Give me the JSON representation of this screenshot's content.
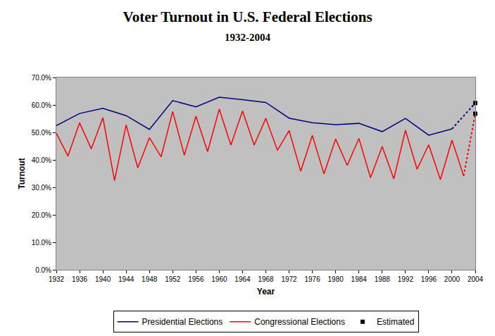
{
  "chart_data": {
    "type": "line",
    "title": "Voter Turnout in U.S. Federal Elections",
    "subtitle": "1932-2004",
    "x_label": "Year",
    "y_label": "Turnout",
    "series": [
      {
        "name": "Presidential Elections",
        "color": "#000080",
        "line_style": "solid",
        "x": [
          1932,
          1936,
          1940,
          1944,
          1948,
          1952,
          1956,
          1960,
          1964,
          1968,
          1972,
          1976,
          1980,
          1984,
          1988,
          1992,
          1996,
          2000,
          2004
        ],
        "values": [
          52.5,
          56.9,
          58.8,
          56.1,
          51.1,
          61.6,
          59.3,
          62.8,
          61.9,
          60.9,
          55.2,
          53.5,
          52.8,
          53.3,
          50.3,
          55.1,
          49.0,
          51.3,
          60.7
        ]
      },
      {
        "name": "Congressional Elections",
        "color": "#ff0000",
        "line_style": "solid",
        "x": [
          1932,
          1934,
          1936,
          1938,
          1940,
          1942,
          1944,
          1946,
          1948,
          1950,
          1952,
          1954,
          1956,
          1958,
          1960,
          1962,
          1964,
          1966,
          1968,
          1970,
          1972,
          1974,
          1976,
          1978,
          1980,
          1982,
          1984,
          1986,
          1988,
          1990,
          1992,
          1994,
          1996,
          1998,
          2000,
          2002,
          2004
        ],
        "values": [
          49.7,
          41.4,
          53.5,
          44.0,
          55.4,
          32.5,
          52.7,
          37.1,
          48.1,
          41.1,
          57.6,
          41.7,
          55.9,
          43.0,
          58.5,
          45.4,
          57.8,
          45.4,
          55.1,
          43.5,
          50.7,
          35.9,
          48.9,
          34.9,
          47.6,
          38.0,
          47.8,
          33.5,
          44.9,
          33.1,
          50.8,
          36.6,
          45.5,
          32.8,
          47.2,
          34.2,
          56.8
        ]
      },
      {
        "name": "Estimated",
        "color": "#000000",
        "type": "scatter",
        "marker": "square",
        "line_style": "dotted",
        "x": [
          2004,
          2004
        ],
        "values": [
          60.7,
          56.8
        ]
      }
    ],
    "xlim": [
      1932,
      2004
    ],
    "xticks": [
      1932,
      1936,
      1940,
      1944,
      1948,
      1952,
      1956,
      1960,
      1964,
      1968,
      1972,
      1976,
      1980,
      1984,
      1988,
      1992,
      1996,
      2000,
      2004
    ],
    "ylim": [
      0,
      70
    ],
    "yticks": [
      {
        "value": 0,
        "label": "0.0%"
      },
      {
        "value": 10,
        "label": "10.0%"
      },
      {
        "value": 20,
        "label": "20.0%"
      },
      {
        "value": 30,
        "label": "30.0%"
      },
      {
        "value": 40,
        "label": "40.0%"
      },
      {
        "value": 50,
        "label": "50.0%"
      },
      {
        "value": 60,
        "label": "60.0%"
      },
      {
        "value": 70,
        "label": "70.0%"
      }
    ],
    "grid": false,
    "legend": "bottom"
  }
}
